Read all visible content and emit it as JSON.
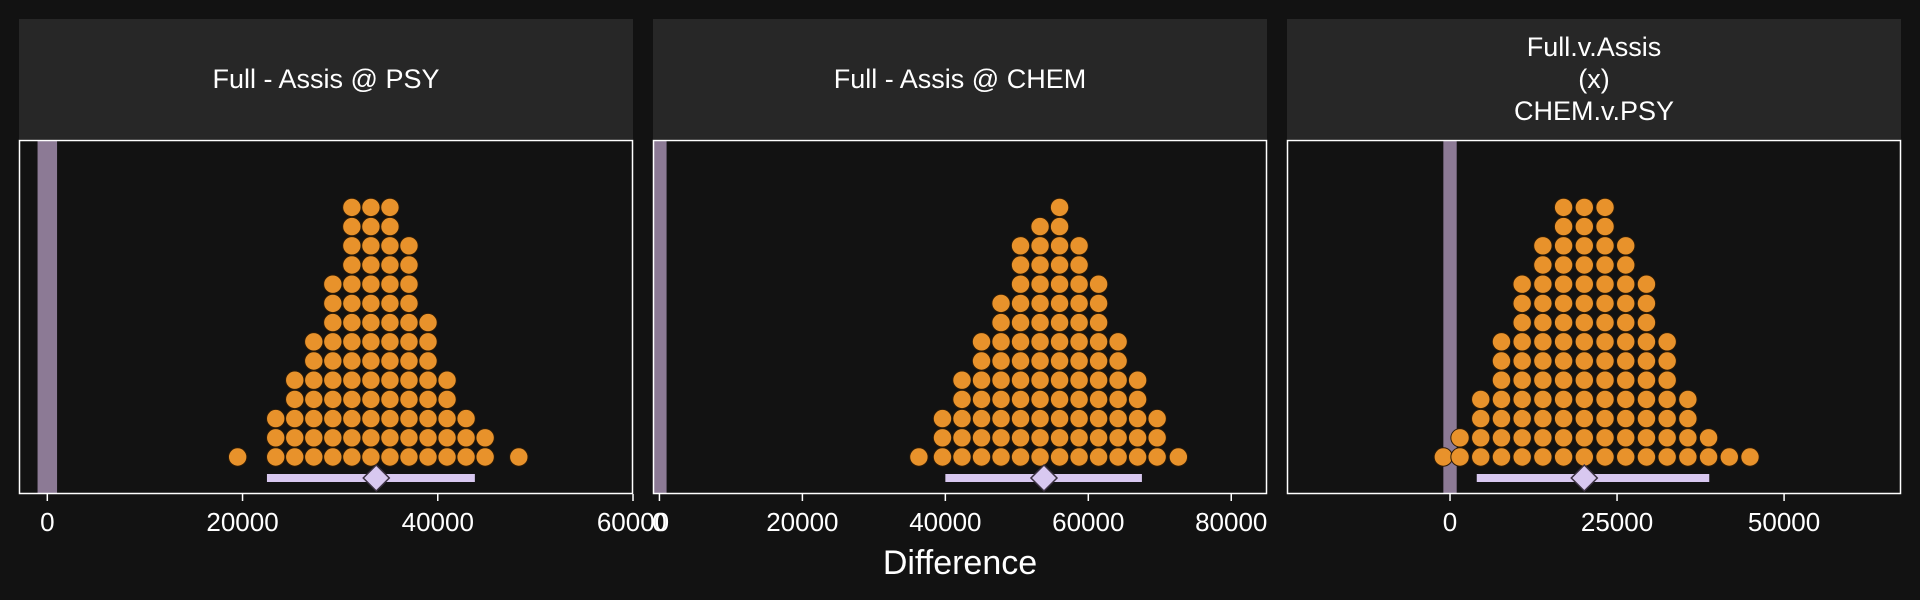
{
  "chart_data": {
    "type": "dotplot",
    "xlabel": "Difference",
    "colors": {
      "background": "#121212",
      "strip": "#272727",
      "dot": "#E8922B",
      "rope": "#8C7A95",
      "interval": "#D8C8F0",
      "text": "#FFFFFF",
      "frame": "#FFFFFF"
    },
    "panels": [
      {
        "title": "Full - Assis @ PSY",
        "xlim": [
          -2900,
          60000
        ],
        "ticks": [
          0,
          20000,
          40000,
          60000
        ],
        "tick_labels": [
          "0",
          "20000",
          "40000",
          "60000"
        ],
        "rope": [
          -1000,
          1000
        ],
        "binwidth": 1950,
        "bins": [
          {
            "x": 19500,
            "n": 1
          },
          {
            "x": 23400,
            "n": 3
          },
          {
            "x": 25350,
            "n": 5
          },
          {
            "x": 27300,
            "n": 7
          },
          {
            "x": 29250,
            "n": 10
          },
          {
            "x": 31200,
            "n": 14
          },
          {
            "x": 33150,
            "n": 14
          },
          {
            "x": 35100,
            "n": 14
          },
          {
            "x": 37050,
            "n": 12
          },
          {
            "x": 39000,
            "n": 8
          },
          {
            "x": 40950,
            "n": 5
          },
          {
            "x": 42900,
            "n": 3
          },
          {
            "x": 44850,
            "n": 2
          },
          {
            "x": 48300,
            "n": 1
          }
        ],
        "interval": [
          22500,
          43800
        ],
        "point": 33700
      },
      {
        "title": "Full - Assis @ CHEM",
        "xlim": [
          -900,
          85000
        ],
        "ticks": [
          0,
          20000,
          40000,
          60000,
          80000
        ],
        "tick_labels": [
          "0",
          "20000",
          "40000",
          "60000",
          "80000"
        ],
        "rope": [
          -1000,
          1000
        ],
        "binwidth": 2730,
        "bins": [
          {
            "x": 36300,
            "n": 1
          },
          {
            "x": 39600,
            "n": 3
          },
          {
            "x": 42330,
            "n": 5
          },
          {
            "x": 45060,
            "n": 7
          },
          {
            "x": 47790,
            "n": 9
          },
          {
            "x": 50520,
            "n": 12
          },
          {
            "x": 53250,
            "n": 13
          },
          {
            "x": 55980,
            "n": 14
          },
          {
            "x": 58710,
            "n": 12
          },
          {
            "x": 61440,
            "n": 10
          },
          {
            "x": 64170,
            "n": 7
          },
          {
            "x": 66900,
            "n": 5
          },
          {
            "x": 69630,
            "n": 3
          },
          {
            "x": 72600,
            "n": 1
          }
        ],
        "interval": [
          40000,
          67500
        ],
        "point": 53800
      },
      {
        "title": "Full.v.Assis\n(x)\nCHEM.v.PSY",
        "xlim": [
          -24400,
          67500
        ],
        "ticks": [
          0,
          25000,
          50000
        ],
        "tick_labels": [
          "0",
          "25000",
          "50000"
        ],
        "rope": [
          -1000,
          1000
        ],
        "binwidth": 3100,
        "bins": [
          {
            "x": -1000,
            "n": 1
          },
          {
            "x": 1500,
            "n": 2
          },
          {
            "x": 4600,
            "n": 4
          },
          {
            "x": 7700,
            "n": 7
          },
          {
            "x": 10800,
            "n": 10
          },
          {
            "x": 13900,
            "n": 12
          },
          {
            "x": 17000,
            "n": 14
          },
          {
            "x": 20100,
            "n": 14
          },
          {
            "x": 23200,
            "n": 14
          },
          {
            "x": 26300,
            "n": 12
          },
          {
            "x": 29400,
            "n": 10
          },
          {
            "x": 32500,
            "n": 7
          },
          {
            "x": 35600,
            "n": 4
          },
          {
            "x": 38700,
            "n": 2
          },
          {
            "x": 41800,
            "n": 1
          },
          {
            "x": 44900,
            "n": 1
          }
        ],
        "interval": [
          4000,
          38800
        ],
        "point": 20100
      }
    ]
  }
}
